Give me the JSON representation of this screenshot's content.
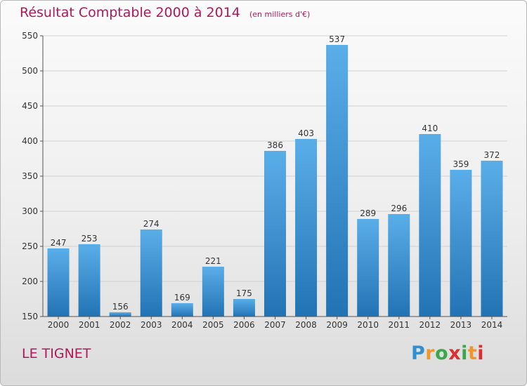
{
  "title": "Résultat Comptable 2000 à 2014",
  "subtitle": "(en milliers d'€)",
  "location": "LE TIGNET",
  "logo": {
    "text": "Proxiti",
    "letter_colors": [
      "#2f8fd0",
      "#f0962a",
      "#3aa84a",
      "#d9302f",
      "#3aa84a",
      "#f0962a",
      "#d9302f"
    ]
  },
  "colors": {
    "title": "#b0185a",
    "bar_light": "#5aaee8",
    "bar_dark": "#2273b4",
    "grid": "#d2d2d2",
    "axis": "#555555"
  },
  "chart_data": {
    "type": "bar",
    "title": "Résultat Comptable 2000 à 2014",
    "subtitle": "(en milliers d'€)",
    "xlabel": "",
    "ylabel": "",
    "categories": [
      "2000",
      "2001",
      "2002",
      "2003",
      "2004",
      "2005",
      "2006",
      "2007",
      "2008",
      "2009",
      "2010",
      "2011",
      "2012",
      "2013",
      "2014"
    ],
    "values": [
      247,
      253,
      156,
      274,
      169,
      221,
      175,
      386,
      403,
      537,
      289,
      296,
      410,
      359,
      372
    ],
    "ylim": [
      150,
      550
    ],
    "yticks": [
      150,
      200,
      250,
      300,
      350,
      400,
      450,
      500,
      550
    ],
    "grid": true,
    "data_labels": true
  }
}
